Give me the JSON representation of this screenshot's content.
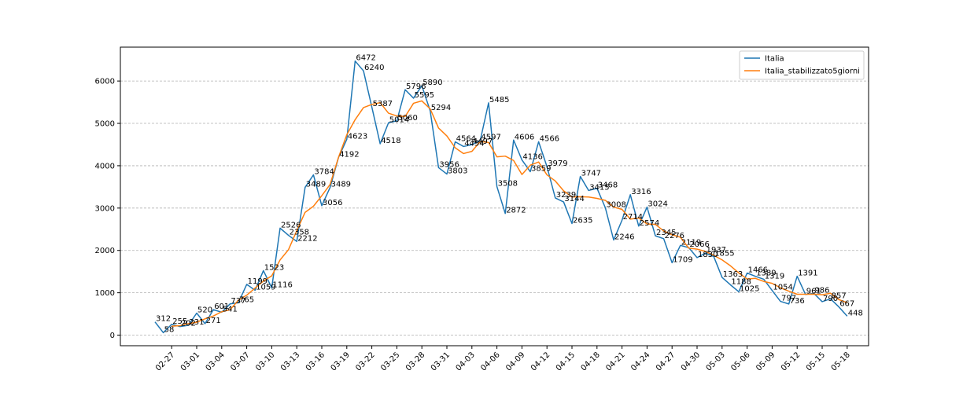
{
  "chart_data": {
    "type": "line",
    "title": "",
    "xlabel": "",
    "ylabel": "",
    "ylim": [
      -250,
      6800
    ],
    "grid": "y",
    "legend_position": "top-right",
    "yticks": [
      0,
      1000,
      2000,
      3000,
      4000,
      5000,
      6000
    ],
    "xtick_labels": [
      "02-27",
      "03-01",
      "03-04",
      "03-07",
      "03-10",
      "03-13",
      "03-16",
      "03-19",
      "03-22",
      "03-25",
      "03-28",
      "03-31",
      "04-03",
      "04-06",
      "04-09",
      "04-12",
      "04-15",
      "04-18",
      "04-21",
      "04-24",
      "04-27",
      "04-30",
      "05-03",
      "05-06",
      "05-09",
      "05-12",
      "05-15",
      "05-18"
    ],
    "xtick_indices": [
      2,
      5,
      8,
      11,
      14,
      17,
      20,
      23,
      26,
      29,
      32,
      35,
      38,
      41,
      44,
      47,
      50,
      53,
      56,
      59,
      62,
      65,
      68,
      71,
      74,
      77,
      80,
      83
    ],
    "series": [
      {
        "name": "Italia",
        "color": "#1f77b4",
        "values": [
          312,
          58,
          255,
          202,
          231,
          520,
          271,
          601,
          541,
          737,
          765,
          1199,
          1059,
          1523,
          1116,
          2526,
          2358,
          2212,
          3489,
          3784,
          3056,
          3489,
          4192,
          4623,
          6472,
          6240,
          5387,
          4518,
          5014,
          5060,
          5796,
          5595,
          5890,
          5294,
          3956,
          3803,
          4564,
          4454,
          4497,
          4597,
          5485,
          3508,
          2872,
          4606,
          4136,
          3859,
          4566,
          3979,
          3239,
          3144,
          2635,
          3747,
          3415,
          3468,
          3008,
          2246,
          2714,
          3316,
          2574,
          3024,
          2345,
          2276,
          1709,
          2119,
          2066,
          1830,
          1937,
          1855,
          1363,
          1188,
          1025,
          1466,
          1389,
          1319,
          1054,
          797,
          736,
          1391,
          961,
          986,
          790,
          857,
          667,
          448
        ],
        "labels": [
          "312",
          "58",
          "255",
          "202",
          "231",
          "520",
          "271",
          "601",
          "541",
          "737",
          "765",
          "1199",
          "1059",
          "1523",
          "1116",
          "2526",
          "2358",
          "2212",
          "3489",
          "3784",
          "3056",
          "3489",
          "4192",
          "4623",
          "6472",
          "6240",
          "5387",
          "4518",
          "5014",
          "5060",
          "5796",
          "5595",
          "5890",
          "5294",
          "3956",
          "3803",
          "4564",
          "4454",
          "4497",
          "4597",
          "5485",
          "3508",
          "2872",
          "4606",
          "4136",
          "3859",
          "4566",
          "3979",
          "3239",
          "3144",
          "2635",
          "3747",
          "3415",
          "3468",
          "3008",
          "2246",
          "2714",
          "3316",
          "2574",
          "3024",
          "2345",
          "2276",
          "1709",
          "2119",
          "2066",
          "1830",
          "1937",
          "1855",
          "1363",
          "1188",
          "1025",
          "1466",
          "1389",
          "1319",
          "1054",
          "797",
          "736",
          "1391",
          "961",
          "986",
          "790",
          "857",
          "667",
          "448"
        ]
      },
      {
        "name": "Italia_stabilizzato5giorni",
        "color": "#ff7f0e",
        "values": [
          null,
          null,
          212,
          223,
          271,
          305,
          385,
          451,
          552,
          599,
          824,
          944,
          1111,
          1277,
          1400,
          1776,
          2015,
          2467,
          2900,
          3043,
          3292,
          3560,
          4195,
          4732,
          5088,
          5373,
          5446,
          5490,
          5241,
          5176,
          5163,
          5475,
          5531,
          5343,
          4890,
          4703,
          4423,
          4287,
          4339,
          4571,
          4549,
          4209,
          4227,
          4124,
          3793,
          4013,
          4088,
          3784,
          3640,
          3407,
          3262,
          3269,
          3262,
          3228,
          3183,
          3023,
          2969,
          2739,
          2766,
          2625,
          2615,
          2460,
          2371,
          2311,
          2055,
          2030,
          1976,
          1884,
          1777,
          1637,
          1469,
          1324,
          1340,
          1267,
          1223,
          1118,
          1038,
          965,
          966,
          967,
          953,
          989,
          840,
          764
        ]
      }
    ]
  }
}
